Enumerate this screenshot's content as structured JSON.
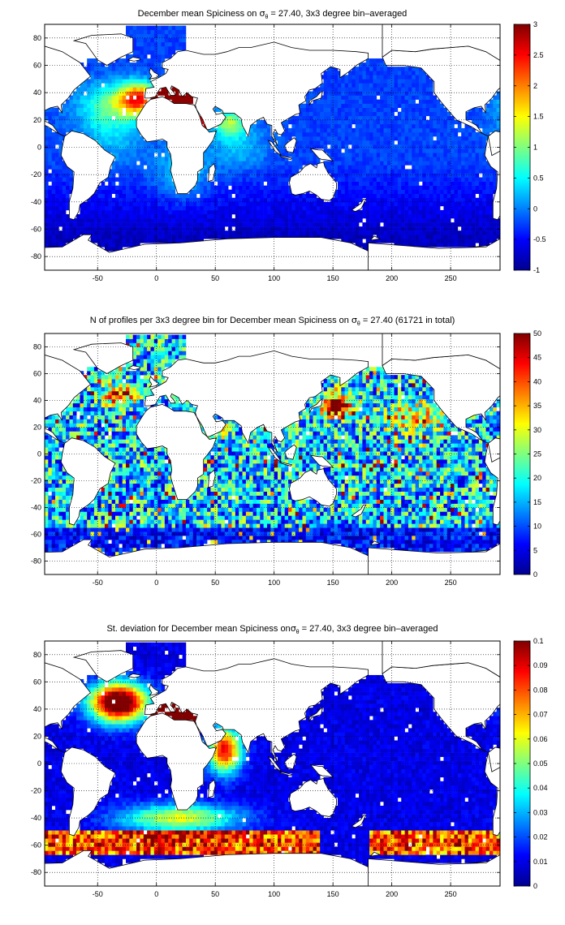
{
  "colormap": "jet",
  "chart_data": [
    {
      "type": "heatmap",
      "id": "spice",
      "title": {
        "pre": "December mean Spiciness on ",
        "sym": "σ",
        "sub": "θ",
        "post": " = 27.40, 3x3 degree bin–averaged"
      },
      "xlim": [
        -95,
        292
      ],
      "ylim": [
        -90,
        90
      ],
      "xticks": [
        -50,
        0,
        50,
        100,
        150,
        200,
        250
      ],
      "yticks": [
        80,
        60,
        40,
        20,
        0,
        -20,
        -40,
        -60,
        -80
      ],
      "grid": true,
      "clim": [
        -1,
        3
      ],
      "cticks": [
        3,
        2.5,
        2,
        1.5,
        1,
        0.5,
        0,
        -0.5,
        -1
      ],
      "bin_deg": 3,
      "pattern": "spice",
      "descr_values": {
        "North Atlantic subtropics near Iberia": 1.6,
        "Mediterranean outflow": 3.0,
        "Arabian Sea": 1.7,
        "Southern Ocean": -0.8,
        "Pacific": -0.4
      }
    },
    {
      "type": "heatmap",
      "id": "count",
      "title": {
        "pre": "N of profiles per 3x3 degree bin for December mean Spiciness on ",
        "sym": "σ",
        "sub": "θ",
        "post": " = 27.40 (61721 in total)"
      },
      "xlim": [
        -95,
        292
      ],
      "ylim": [
        -90,
        90
      ],
      "xticks": [
        -50,
        0,
        50,
        100,
        150,
        200,
        250
      ],
      "yticks": [
        80,
        60,
        40,
        20,
        0,
        -20,
        -40,
        -60,
        -80
      ],
      "grid": true,
      "clim": [
        0,
        50
      ],
      "cticks": [
        50,
        45,
        40,
        35,
        30,
        25,
        20,
        15,
        10,
        5,
        0
      ],
      "bin_deg": 3,
      "pattern": "count",
      "descr_values": {
        "Kuroshio region": 50,
        "Open ocean typical": 15,
        "Southern Ocean": 8
      }
    },
    {
      "type": "heatmap",
      "id": "std",
      "title": {
        "pre": "St. deviation for December mean Spiciness on",
        "sym": "σ",
        "sub": "θ",
        "post": " = 27.40, 3x3 degree bin–averaged"
      },
      "xlim": [
        -95,
        292
      ],
      "ylim": [
        -90,
        90
      ],
      "xticks": [
        -50,
        0,
        50,
        100,
        150,
        200,
        250
      ],
      "yticks": [
        80,
        60,
        40,
        20,
        0,
        -20,
        -40,
        -60,
        -80
      ],
      "grid": true,
      "clim": [
        0,
        0.1
      ],
      "cticks": [
        0.1,
        0.09,
        0.08,
        0.07,
        0.06,
        0.05,
        0.04,
        0.03,
        0.02,
        0.01,
        0
      ],
      "bin_deg": 3,
      "pattern": "std",
      "descr_values": {
        "Subpolar North Atlantic": 0.1,
        "Red Sea / Arabian Sea outflow": 0.1,
        "Southern Ocean band": 0.08,
        "Pacific interior": 0.01
      }
    }
  ]
}
